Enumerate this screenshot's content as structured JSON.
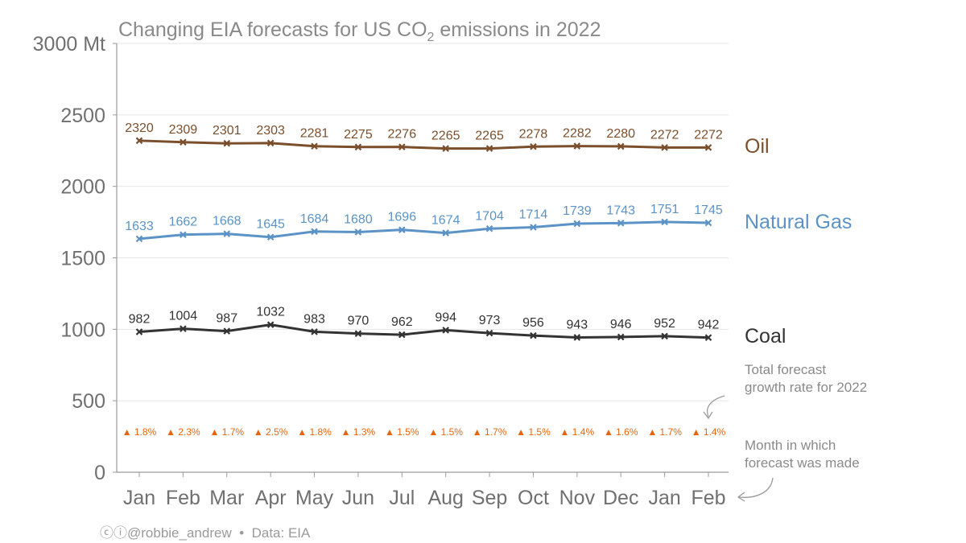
{
  "chart_data": {
    "type": "line",
    "title_before": "Changing EIA forecasts for US CO",
    "title_subscript": "2",
    "title_after": " emissions in 2022",
    "categories": [
      "Jan",
      "Feb",
      "Mar",
      "Apr",
      "May",
      "Jun",
      "Jul",
      "Aug",
      "Sep",
      "Oct",
      "Nov",
      "Dec",
      "Jan",
      "Feb"
    ],
    "ylim": [
      0,
      3000
    ],
    "yticks": [
      "0",
      "500",
      "1000",
      "1500",
      "2000",
      "2500",
      "3000 Mt"
    ],
    "ytick_values": [
      0,
      500,
      1000,
      1500,
      2000,
      2500,
      3000
    ],
    "grid": true,
    "series": [
      {
        "name": "Oil",
        "color": "#7b4f2c",
        "values": [
          2320,
          2309,
          2301,
          2303,
          2281,
          2275,
          2276,
          2265,
          2265,
          2278,
          2282,
          2280,
          2272,
          2272
        ]
      },
      {
        "name": "Natural Gas",
        "color": "#5b93c7",
        "values": [
          1633,
          1662,
          1668,
          1645,
          1684,
          1680,
          1696,
          1674,
          1704,
          1714,
          1739,
          1743,
          1751,
          1745
        ]
      },
      {
        "name": "Coal",
        "color": "#333333",
        "values": [
          982,
          1004,
          987,
          1032,
          983,
          970,
          962,
          994,
          973,
          956,
          943,
          946,
          952,
          942
        ]
      }
    ],
    "growth": {
      "color": "#e8650e",
      "symbol": "▲",
      "labels": [
        "1.8%",
        "2.3%",
        "1.7%",
        "2.5%",
        "1.8%",
        "1.3%",
        "1.5%",
        "1.5%",
        "1.7%",
        "1.5%",
        "1.4%",
        "1.6%",
        "1.7%",
        "1.4%"
      ]
    },
    "annotations": {
      "growth_note_line1": "Total forecast",
      "growth_note_line2": "growth rate for 2022",
      "month_note_line1": "Month in which",
      "month_note_line2": "forecast was made"
    }
  },
  "footer": {
    "credit_icons": "ⓒⓘ",
    "handle": "@robbie_andrew",
    "separator": "•",
    "source": "Data: EIA"
  }
}
